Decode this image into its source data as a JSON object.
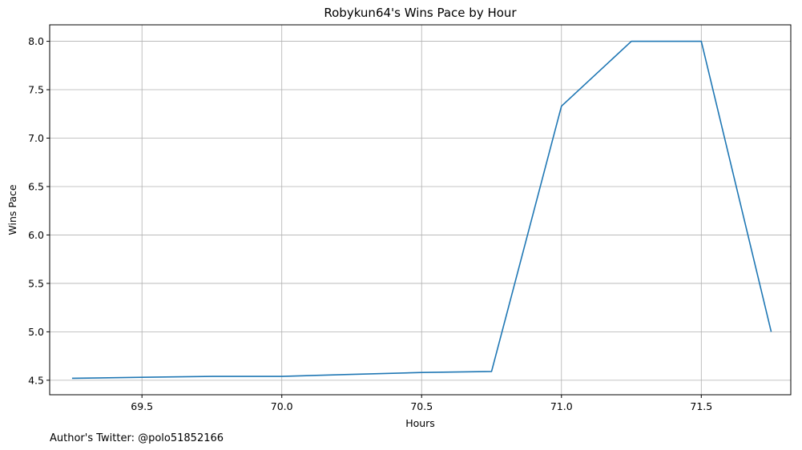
{
  "chart_data": {
    "type": "line",
    "title": "Robykun64's Wins Pace by Hour",
    "xlabel": "Hours",
    "ylabel": "Wins Pace",
    "xlim": [
      69.17,
      71.82
    ],
    "ylim": [
      4.35,
      8.17
    ],
    "xticks": [
      69.5,
      70.0,
      70.5,
      71.0,
      71.5
    ],
    "xtick_labels": [
      "69.5",
      "70.0",
      "70.5",
      "71.0",
      "71.5"
    ],
    "yticks": [
      4.5,
      5.0,
      5.5,
      6.0,
      6.5,
      7.0,
      7.5,
      8.0
    ],
    "ytick_labels": [
      "4.5",
      "5.0",
      "5.5",
      "6.0",
      "6.5",
      "7.0",
      "7.5",
      "8.0"
    ],
    "grid": true,
    "series": [
      {
        "color": "#1f77b4",
        "x": [
          69.25,
          69.5,
          69.75,
          70.0,
          70.25,
          70.5,
          70.75,
          71.0,
          71.25,
          71.5,
          71.75
        ],
        "y": [
          4.52,
          4.53,
          4.54,
          4.54,
          4.56,
          4.58,
          4.59,
          7.33,
          8.0,
          8.0,
          5.0
        ]
      }
    ]
  },
  "footnote": "Author's Twitter: @polo51852166"
}
